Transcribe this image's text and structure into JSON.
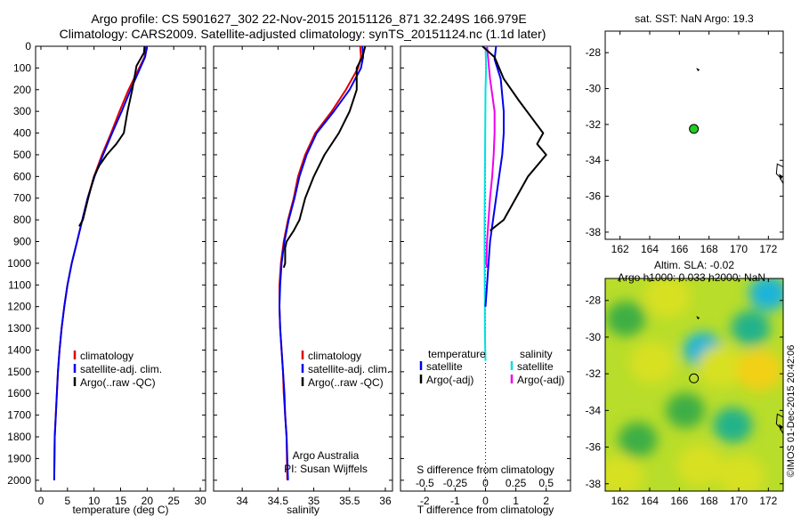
{
  "header": {
    "line1": "Argo profile: CS 5901627_302 22-Nov-2015 20151126_871 32.249S 166.979E",
    "line2": "Climatology: CARS2009. Satellite-adjusted climatology: synTS_20151124.nc (1.1d later)"
  },
  "credits": {
    "org": "Argo Australia",
    "pi": "PI: Susan Wijffels",
    "stamp": "©IMOS 01-Dec-2015 20:42:06"
  },
  "colors": {
    "climatology": "#dd0000",
    "satellite": "#0000ee",
    "argo": "#000000",
    "s_satellite": "#00e0e0",
    "s_argo": "#ee00ee",
    "float_marker": "#22cc22"
  },
  "chart_data": [
    {
      "id": "temperature",
      "type": "line",
      "xlabel": "temperature (deg C)",
      "xlim": [
        -1,
        31
      ],
      "ylim": [
        2050,
        0
      ],
      "xticks": [
        0,
        5,
        10,
        15,
        20,
        25,
        30
      ],
      "yticks": [
        0,
        100,
        200,
        300,
        400,
        500,
        600,
        700,
        800,
        900,
        1000,
        1100,
        1200,
        1300,
        1400,
        1500,
        1600,
        1700,
        1800,
        1900,
        2000
      ],
      "legend": [
        "climatology",
        "satellite-adj. clim.",
        "Argo(..raw -QC)"
      ],
      "series": [
        {
          "name": "climatology",
          "color": "#dd0000",
          "x": [
            19.8,
            19.5,
            18.5,
            16.5,
            14.8,
            13.2,
            11.5,
            10.0,
            8.8,
            7.8,
            6.8,
            5.8,
            5.0,
            4.4,
            3.9,
            3.5,
            3.2,
            3.0,
            2.8,
            2.6,
            2.5
          ],
          "y": [
            0,
            50,
            100,
            200,
            300,
            400,
            500,
            600,
            700,
            800,
            900,
            1000,
            1100,
            1200,
            1300,
            1400,
            1500,
            1600,
            1700,
            1800,
            2000
          ]
        },
        {
          "name": "satellite-adj. clim.",
          "color": "#0000ee",
          "x": [
            20.0,
            19.6,
            18.7,
            16.9,
            15.2,
            13.4,
            11.7,
            10.1,
            8.8,
            7.8,
            6.8,
            5.8,
            5.0,
            4.4,
            3.9,
            3.5,
            3.2,
            3.0,
            2.8,
            2.6,
            2.5
          ],
          "y": [
            0,
            50,
            100,
            200,
            300,
            400,
            500,
            600,
            700,
            800,
            900,
            1000,
            1100,
            1200,
            1300,
            1400,
            1500,
            1600,
            1700,
            1800,
            2000
          ]
        },
        {
          "name": "Argo(..raw -QC)",
          "color": "#000000",
          "x": [
            19.5,
            19.4,
            18.0,
            17.2,
            16.3,
            15.6,
            14.2,
            12.4,
            11.0,
            10.0,
            8.9,
            7.9,
            7.2
          ],
          "y": [
            0,
            30,
            90,
            200,
            300,
            400,
            450,
            500,
            550,
            600,
            700,
            800,
            830
          ]
        }
      ]
    },
    {
      "id": "salinity",
      "type": "line",
      "xlabel": "salinity",
      "xlim": [
        33.6,
        36.1
      ],
      "ylim": [
        2050,
        0
      ],
      "xticks": [
        34,
        34.5,
        35,
        35.5,
        36
      ],
      "legend": [
        "climatology",
        "satellite-adj. clim.",
        "Argo(..raw -QC)"
      ],
      "series": [
        {
          "name": "climatology",
          "color": "#dd0000",
          "x": [
            35.65,
            35.66,
            35.62,
            35.45,
            35.25,
            35.02,
            34.88,
            34.78,
            34.72,
            34.64,
            34.58,
            34.54,
            34.52,
            34.52,
            34.53,
            34.55,
            34.57,
            34.58,
            34.6,
            34.62,
            34.63
          ],
          "y": [
            0,
            50,
            100,
            200,
            300,
            400,
            500,
            600,
            700,
            800,
            900,
            1000,
            1100,
            1200,
            1300,
            1400,
            1500,
            1600,
            1700,
            1800,
            2000
          ]
        },
        {
          "name": "satellite-adj. clim.",
          "color": "#0000ee",
          "x": [
            35.68,
            35.69,
            35.66,
            35.5,
            35.28,
            35.04,
            34.9,
            34.8,
            34.73,
            34.65,
            34.59,
            34.55,
            34.53,
            34.52,
            34.53,
            34.55,
            34.57,
            34.59,
            34.6,
            34.62,
            34.64
          ],
          "y": [
            0,
            50,
            100,
            200,
            300,
            400,
            500,
            600,
            700,
            800,
            900,
            1000,
            1100,
            1200,
            1300,
            1400,
            1500,
            1600,
            1700,
            1800,
            2000
          ]
        },
        {
          "name": "Argo(..raw -QC)",
          "color": "#000000",
          "x": [
            35.72,
            35.68,
            35.6,
            35.6,
            35.5,
            35.35,
            35.15,
            35.0,
            34.88,
            34.8,
            34.72,
            34.62,
            34.6,
            34.6,
            34.58
          ],
          "y": [
            0,
            50,
            100,
            200,
            300,
            400,
            500,
            600,
            700,
            800,
            850,
            900,
            930,
            1000,
            1020
          ]
        }
      ]
    },
    {
      "id": "difference",
      "type": "line",
      "xlabel": "T difference from climatology",
      "xlabel_top": "S difference from climatology",
      "xlim": [
        -2.8,
        2.8
      ],
      "ylim": [
        2050,
        0
      ],
      "xticks": [
        -2,
        -1,
        0,
        1,
        2
      ],
      "xticks_s": [
        "-0.5",
        "-0.25",
        "0",
        "0.25",
        "0.5"
      ],
      "zero_line": true,
      "legend": {
        "temperature_title": "temperature",
        "salinity_title": "salinity",
        "t_items": [
          "satellite",
          "Argo(-adj)"
        ],
        "s_items": [
          "satellite",
          "Argo(-adj)"
        ]
      },
      "series": [
        {
          "name": "T satellite",
          "color": "#0000ee",
          "x": [
            0.35,
            0.3,
            0.5,
            0.6,
            0.6,
            0.55,
            0.45,
            0.35,
            0.25,
            0.15,
            0.1,
            0.05,
            0.0
          ],
          "y": [
            0,
            60,
            150,
            300,
            400,
            500,
            600,
            700,
            800,
            900,
            1000,
            1100,
            1200
          ]
        },
        {
          "name": "T Argo(-adj)",
          "color": "#000000",
          "x": [
            -0.1,
            0.3,
            0.6,
            1.1,
            1.9,
            1.7,
            2.0,
            1.4,
            1.0,
            0.6,
            0.15
          ],
          "y": [
            0,
            50,
            150,
            250,
            400,
            450,
            500,
            600,
            700,
            800,
            850
          ]
        },
        {
          "name": "S satellite",
          "color": "#00e0e0",
          "x": [
            0.0,
            0.02,
            0.0,
            -0.01,
            -0.02,
            -0.03,
            -0.03,
            -0.02,
            -0.02,
            -0.01,
            0.0
          ],
          "y": [
            0,
            100,
            200,
            400,
            600,
            800,
            1000,
            1200,
            1300,
            1400,
            1450
          ]
        },
        {
          "name": "S Argo(-adj)",
          "color": "#ee00ee",
          "x": [
            0.05,
            0.15,
            0.3,
            0.3,
            0.27,
            0.22,
            0.15,
            0.1,
            0.05,
            0.03,
            0.05
          ],
          "y": [
            0,
            150,
            300,
            400,
            500,
            600,
            700,
            800,
            900,
            1000,
            1020
          ]
        }
      ]
    },
    {
      "id": "sst-map",
      "type": "scatter",
      "title": "sat. SST: NaN Argo: 19.3",
      "xlim": [
        161,
        173
      ],
      "ylim": [
        -38.4,
        -26.8
      ],
      "xticks": [
        162,
        164,
        166,
        168,
        170,
        172
      ],
      "yticks": [
        -28,
        -30,
        -32,
        -34,
        -36,
        -38
      ],
      "points": [
        {
          "lon": 166.979,
          "lat": -32.249
        }
      ]
    },
    {
      "id": "sla-map",
      "type": "heatmap",
      "title_line1": "Altim. SLA: -0.02",
      "title_line2": "Argo h1000: 0.033 h2000: NaN",
      "xlim": [
        161,
        173
      ],
      "ylim": [
        -38.4,
        -26.8
      ],
      "xticks": [
        162,
        164,
        166,
        168,
        170,
        172
      ],
      "yticks": [
        -28,
        -30,
        -32,
        -34,
        -36,
        -38
      ],
      "points": [
        {
          "lon": 166.979,
          "lat": -32.249
        }
      ],
      "blobs": [
        {
          "lon": 172.0,
          "lat": -27.6,
          "level": 0.0
        },
        {
          "lon": 167.6,
          "lat": -30.7,
          "level": 0.08
        },
        {
          "lon": 170.8,
          "lat": -29.5,
          "level": 0.22
        },
        {
          "lon": 162.4,
          "lat": -29.0,
          "level": 0.3
        },
        {
          "lon": 169.6,
          "lat": -34.8,
          "level": 0.28
        },
        {
          "lon": 163.2,
          "lat": -35.6,
          "level": 0.3
        },
        {
          "lon": 166.4,
          "lat": -34.0,
          "level": 0.45
        },
        {
          "lon": 165.2,
          "lat": -27.8,
          "level": 0.8
        },
        {
          "lon": 168.8,
          "lat": -31.6,
          "level": 0.82
        },
        {
          "lon": 171.4,
          "lat": -31.8,
          "level": 0.85
        },
        {
          "lon": 164.2,
          "lat": -31.4,
          "level": 0.78
        },
        {
          "lon": 162.0,
          "lat": -37.6,
          "level": 0.75
        },
        {
          "lon": 170.2,
          "lat": -37.6,
          "level": 0.8
        },
        {
          "lon": 167.4,
          "lat": -37.0,
          "level": 0.7
        }
      ]
    }
  ]
}
